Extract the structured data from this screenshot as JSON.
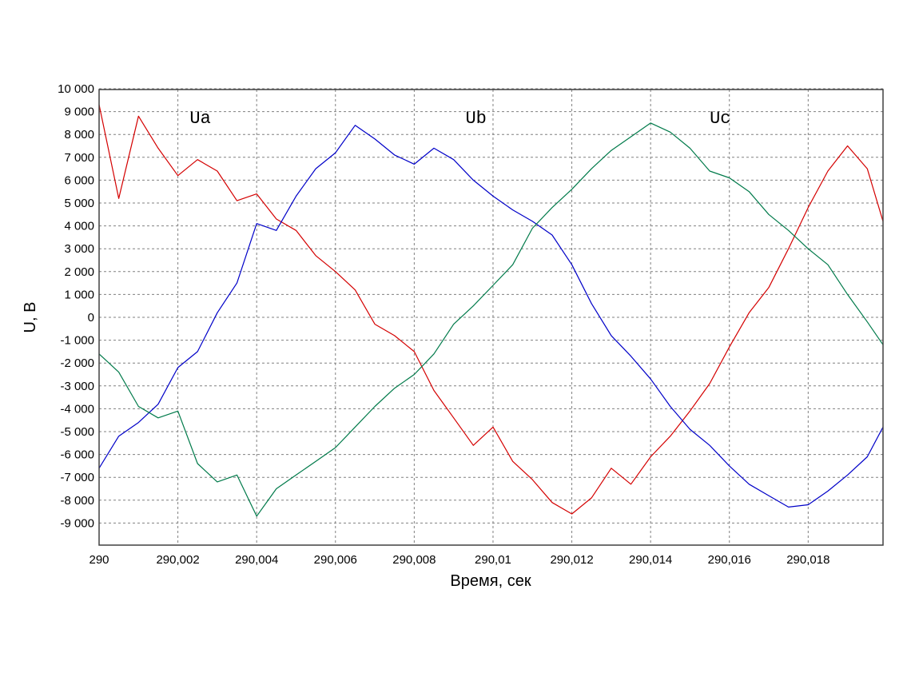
{
  "chart_data": {
    "type": "line",
    "title": "",
    "xlabel": "Время, сек",
    "ylabel": "U, В",
    "xlim": [
      290,
      290.0199
    ],
    "ylim": [
      -10000,
      10000
    ],
    "grid": true,
    "x_ticks": [
      {
        "value": 290.0,
        "label": "290"
      },
      {
        "value": 290.002,
        "label": "290,002"
      },
      {
        "value": 290.004,
        "label": "290,004"
      },
      {
        "value": 290.006,
        "label": "290,006"
      },
      {
        "value": 290.008,
        "label": "290,008"
      },
      {
        "value": 290.01,
        "label": "290,01"
      },
      {
        "value": 290.012,
        "label": "290,012"
      },
      {
        "value": 290.014,
        "label": "290,014"
      },
      {
        "value": 290.016,
        "label": "290,016"
      },
      {
        "value": 290.018,
        "label": "290,018"
      }
    ],
    "y_ticks": [
      {
        "value": 10000,
        "label": "10 000"
      },
      {
        "value": 9000,
        "label": "9 000"
      },
      {
        "value": 8000,
        "label": "8 000"
      },
      {
        "value": 7000,
        "label": "7 000"
      },
      {
        "value": 6000,
        "label": "6 000"
      },
      {
        "value": 5000,
        "label": "5 000"
      },
      {
        "value": 4000,
        "label": "4 000"
      },
      {
        "value": 3000,
        "label": "3 000"
      },
      {
        "value": 2000,
        "label": "2 000"
      },
      {
        "value": 1000,
        "label": "1 000"
      },
      {
        "value": 0,
        "label": "0"
      },
      {
        "value": -1000,
        "label": "-1 000"
      },
      {
        "value": -2000,
        "label": "-2 000"
      },
      {
        "value": -3000,
        "label": "-3 000"
      },
      {
        "value": -4000,
        "label": "-4 000"
      },
      {
        "value": -5000,
        "label": "-5 000"
      },
      {
        "value": -6000,
        "label": "-6 000"
      },
      {
        "value": -7000,
        "label": "-7 000"
      },
      {
        "value": -8000,
        "label": "-8 000"
      },
      {
        "value": -9000,
        "label": "-9 000"
      }
    ],
    "x": [
      290.0,
      290.0005,
      290.001,
      290.0015,
      290.002,
      290.0025,
      290.003,
      290.0035,
      290.004,
      290.0045,
      290.005,
      290.0055,
      290.006,
      290.0065,
      290.007,
      290.0075,
      290.008,
      290.0085,
      290.009,
      290.0095,
      290.01,
      290.0105,
      290.011,
      290.0115,
      290.012,
      290.0125,
      290.013,
      290.0135,
      290.014,
      290.0145,
      290.015,
      290.0155,
      290.016,
      290.0165,
      290.017,
      290.0175,
      290.018,
      290.0185,
      290.019,
      290.0195,
      290.0199
    ],
    "series": [
      {
        "name": "Ua",
        "color": "#d40000",
        "values": [
          9300,
          5200,
          8800,
          7400,
          6200,
          6900,
          6400,
          5100,
          5400,
          4300,
          3800,
          2700,
          2000,
          1200,
          -300,
          -800,
          -1500,
          -3200,
          -4400,
          -5600,
          -4800,
          -6300,
          -7100,
          -8100,
          -8600,
          -7900,
          -6600,
          -7300,
          -6100,
          -5200,
          -4100,
          -2900,
          -1300,
          200,
          1300,
          3000,
          4800,
          6400,
          7500,
          6500,
          4200
        ]
      },
      {
        "name": "Ub",
        "color": "#0000c8",
        "values": [
          -6600,
          -5200,
          -4600,
          -3800,
          -2200,
          -1500,
          200,
          1500,
          4100,
          3800,
          5300,
          6500,
          7200,
          8400,
          7800,
          7100,
          6700,
          7400,
          6900,
          6000,
          5300,
          4700,
          4200,
          3600,
          2300,
          600,
          -800,
          -1700,
          -2700,
          -3900,
          -4900,
          -5600,
          -6500,
          -7300,
          -7800,
          -8300,
          -8200,
          -7600,
          -6900,
          -6100,
          -4800
        ]
      },
      {
        "name": "Uc",
        "color": "#007a4a",
        "values": [
          -1600,
          -2400,
          -3900,
          -4400,
          -4100,
          -6400,
          -7200,
          -6900,
          -8700,
          -7500,
          -6900,
          -6300,
          -5700,
          -4800,
          -3900,
          -3100,
          -2500,
          -1600,
          -300,
          500,
          1400,
          2300,
          3900,
          4800,
          5600,
          6500,
          7300,
          7900,
          8500,
          8100,
          7400,
          6400,
          6100,
          5500,
          4500,
          3800,
          3000,
          2300,
          1000,
          -200,
          -1200
        ]
      }
    ],
    "annotations": [
      {
        "text": "Ua",
        "x": 290.0023,
        "y": 8500
      },
      {
        "text": "Ub",
        "x": 290.0093,
        "y": 8500
      },
      {
        "text": "Uc",
        "x": 290.0155,
        "y": 8500
      }
    ],
    "colors": {
      "plot_border": "#404040",
      "grid": "#808080",
      "background": "#ffffff"
    }
  }
}
